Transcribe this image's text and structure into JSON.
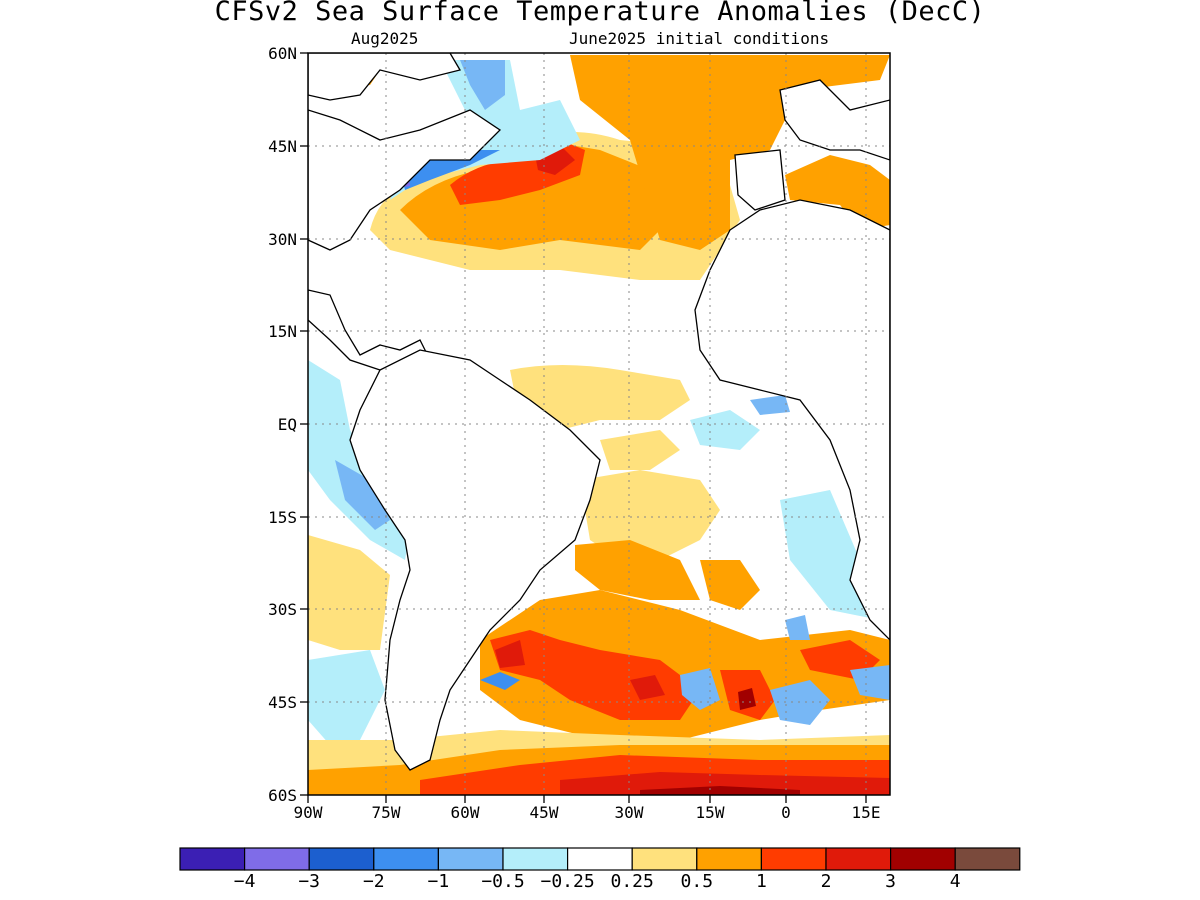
{
  "title": "CFSv2 Sea Surface Temperature Anomalies (DecC)",
  "subtitle_left": "Aug2025",
  "subtitle_right": "June2025 initial conditions",
  "axes": {
    "lat_labels": [
      "60N",
      "45N",
      "30N",
      "15N",
      "EQ",
      "15S",
      "30S",
      "45S",
      "60S"
    ],
    "lon_labels": [
      "90W",
      "75W",
      "60W",
      "45W",
      "30W",
      "15W",
      "0",
      "15E"
    ]
  },
  "colorbar": {
    "colors": [
      "#3b1fb4",
      "#7f6ce8",
      "#1c5fcf",
      "#3d8ff0",
      "#77b7f5",
      "#b4eefa",
      "#ffffff",
      "#ffe17d",
      "#ffa100",
      "#ff3c00",
      "#e01a0a",
      "#a10000",
      "#7a4a3c"
    ],
    "labels": [
      "−4",
      "−3",
      "−2",
      "−1",
      "−0.5",
      "−0.25",
      "0.25",
      "0.5",
      "1",
      "2",
      "3",
      "4"
    ]
  }
}
